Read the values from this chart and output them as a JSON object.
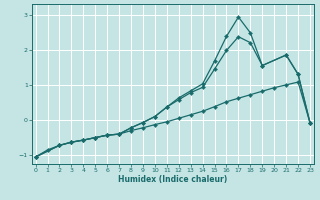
{
  "xlabel": "Humidex (Indice chaleur)",
  "xlim": [
    -0.3,
    23.3
  ],
  "ylim": [
    -1.25,
    3.3
  ],
  "xticks": [
    0,
    1,
    2,
    3,
    4,
    5,
    6,
    7,
    8,
    9,
    10,
    11,
    12,
    13,
    14,
    15,
    16,
    17,
    18,
    19,
    20,
    21,
    22,
    23
  ],
  "yticks": [
    -1,
    0,
    1,
    2,
    3
  ],
  "background_color": "#c5e5e5",
  "grid_color": "#e8f4f4",
  "line_color": "#1a6b6b",
  "line1_x": [
    0,
    1,
    2,
    3,
    4,
    5,
    6,
    7,
    8,
    9,
    10,
    11,
    12,
    13,
    14,
    15,
    16,
    17,
    18,
    19,
    20,
    21,
    22,
    23
  ],
  "line1_y": [
    -1.05,
    -0.85,
    -0.72,
    -0.63,
    -0.57,
    -0.5,
    -0.43,
    -0.4,
    -0.3,
    -0.22,
    -0.13,
    -0.05,
    0.05,
    0.15,
    0.25,
    0.38,
    0.52,
    0.62,
    0.72,
    0.82,
    0.92,
    1.0,
    1.08,
    -0.08
  ],
  "line2_x": [
    0,
    2,
    3,
    4,
    5,
    6,
    7,
    8,
    9,
    10,
    11,
    12,
    13,
    14,
    15,
    16,
    17,
    18,
    19,
    21,
    22,
    23
  ],
  "line2_y": [
    -1.05,
    -0.72,
    -0.63,
    -0.57,
    -0.5,
    -0.43,
    -0.4,
    -0.22,
    -0.07,
    0.1,
    0.37,
    0.58,
    0.78,
    0.93,
    1.45,
    1.98,
    2.37,
    2.2,
    1.55,
    1.85,
    1.3,
    -0.08
  ],
  "line3_x": [
    0,
    2,
    3,
    4,
    5,
    6,
    7,
    8,
    9,
    10,
    11,
    12,
    13,
    14,
    15,
    16,
    17,
    18,
    19,
    21,
    22,
    23
  ],
  "line3_y": [
    -1.05,
    -0.72,
    -0.63,
    -0.57,
    -0.5,
    -0.43,
    -0.4,
    -0.22,
    -0.07,
    0.1,
    0.37,
    0.63,
    0.83,
    1.03,
    1.68,
    2.38,
    2.93,
    2.48,
    1.55,
    1.85,
    1.3,
    -0.08
  ],
  "markersize": 2.2,
  "linewidth": 0.9
}
